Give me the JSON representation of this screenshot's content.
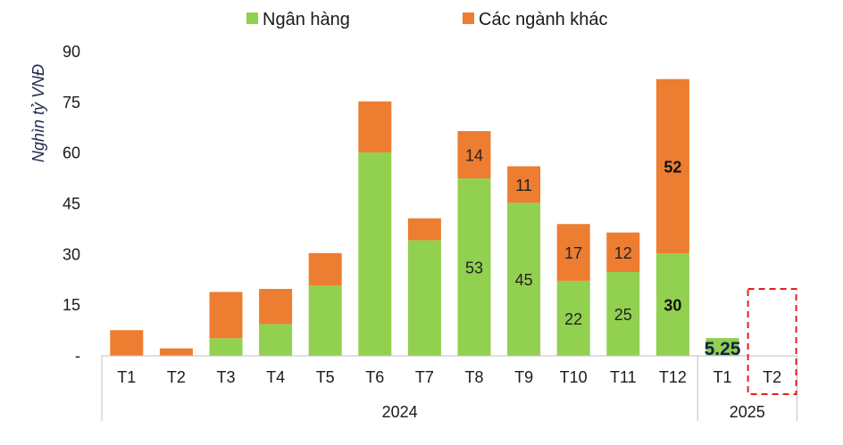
{
  "chart_data": {
    "type": "bar",
    "stacked": true,
    "ylabel": "Nghìn tỷ VNĐ",
    "ylim": [
      0,
      90
    ],
    "yticks": [
      "-",
      "15",
      "30",
      "45",
      "60",
      "75",
      "90"
    ],
    "categories": [
      "T1",
      "T2",
      "T3",
      "T4",
      "T5",
      "T6",
      "T7",
      "T8",
      "T9",
      "T10",
      "T11",
      "T12",
      "T1",
      "T2"
    ],
    "groups": [
      {
        "label": "2024",
        "count": 12
      },
      {
        "label": "2025",
        "count": 2
      }
    ],
    "series": [
      {
        "name": "Ngân hàng",
        "color": "#92d050",
        "values": [
          0,
          0,
          5.2,
          9.4,
          20.8,
          60.2,
          34.2,
          52.5,
          45.3,
          22.2,
          24.8,
          30.3,
          5.25,
          0
        ],
        "labels": [
          "",
          "",
          "",
          "",
          "",
          "",
          "",
          "53",
          "45",
          "22",
          "25",
          "30",
          "5.25",
          ""
        ]
      },
      {
        "name": "Các ngành khác",
        "color": "#ed7d31",
        "values": [
          7.6,
          2.2,
          13.7,
          10.4,
          9.6,
          15.1,
          6.5,
          14.0,
          10.8,
          16.8,
          11.7,
          51.6,
          0,
          0
        ],
        "labels": [
          "",
          "",
          "",
          "",
          "",
          "",
          "",
          "14",
          "11",
          "17",
          "12",
          "52",
          "",
          ""
        ]
      }
    ],
    "bold_labels_for": [
      "T12",
      "2025-T1"
    ],
    "highlight": {
      "category_index": 13,
      "style": "red-dashed-box"
    },
    "legend_position": "top"
  }
}
